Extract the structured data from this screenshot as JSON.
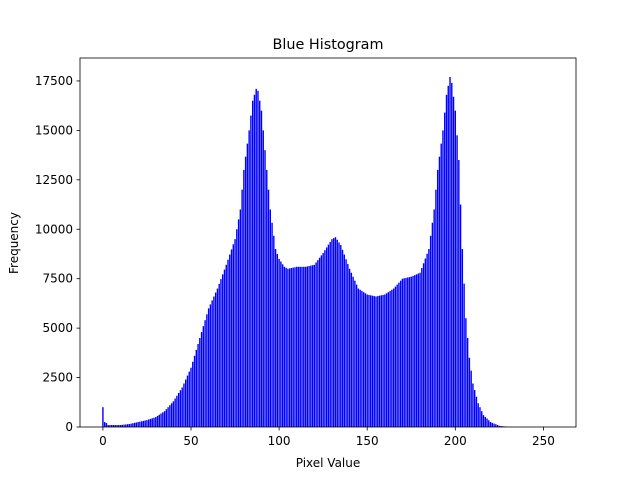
{
  "chart_data": {
    "type": "bar",
    "title": "Blue Histogram",
    "xlabel": "Pixel Value",
    "ylabel": "Frequency",
    "color": "#0000ff",
    "x": [
      0,
      1,
      2,
      3,
      4,
      5,
      6,
      7,
      8,
      9,
      10,
      11,
      12,
      13,
      14,
      15,
      16,
      17,
      18,
      19,
      20,
      21,
      22,
      23,
      24,
      25,
      26,
      27,
      28,
      29,
      30,
      31,
      32,
      33,
      34,
      35,
      36,
      37,
      38,
      39,
      40,
      41,
      42,
      43,
      44,
      45,
      46,
      47,
      48,
      49,
      50,
      51,
      52,
      53,
      54,
      55,
      56,
      57,
      58,
      59,
      60,
      61,
      62,
      63,
      64,
      65,
      66,
      67,
      68,
      69,
      70,
      71,
      72,
      73,
      74,
      75,
      76,
      77,
      78,
      79,
      80,
      81,
      82,
      83,
      84,
      85,
      86,
      87,
      88,
      89,
      90,
      91,
      92,
      93,
      94,
      95,
      96,
      97,
      98,
      99,
      100,
      101,
      102,
      103,
      104,
      105,
      106,
      107,
      108,
      109,
      110,
      111,
      112,
      113,
      114,
      115,
      116,
      117,
      118,
      119,
      120,
      121,
      122,
      123,
      124,
      125,
      126,
      127,
      128,
      129,
      130,
      131,
      132,
      133,
      134,
      135,
      136,
      137,
      138,
      139,
      140,
      141,
      142,
      143,
      144,
      145,
      146,
      147,
      148,
      149,
      150,
      151,
      152,
      153,
      154,
      155,
      156,
      157,
      158,
      159,
      160,
      161,
      162,
      163,
      164,
      165,
      166,
      167,
      168,
      169,
      170,
      171,
      172,
      173,
      174,
      175,
      176,
      177,
      178,
      179,
      180,
      181,
      182,
      183,
      184,
      185,
      186,
      187,
      188,
      189,
      190,
      191,
      192,
      193,
      194,
      195,
      196,
      197,
      198,
      199,
      200,
      201,
      202,
      203,
      204,
      205,
      206,
      207,
      208,
      209,
      210,
      211,
      212,
      213,
      214,
      215,
      216,
      217,
      218,
      219,
      220,
      221,
      222,
      223,
      224,
      225,
      226,
      227,
      228,
      229,
      230,
      231,
      232,
      233,
      234,
      235,
      236,
      237,
      238,
      239,
      240,
      241,
      242,
      243,
      244,
      245,
      246,
      247,
      248,
      249,
      250,
      251,
      252,
      253,
      254,
      255
    ],
    "values": [
      1000,
      250,
      200,
      100,
      100,
      100,
      100,
      100,
      100,
      100,
      100,
      110,
      120,
      130,
      140,
      150,
      170,
      190,
      210,
      230,
      250,
      270,
      290,
      310,
      330,
      350,
      380,
      410,
      440,
      470,
      500,
      560,
      620,
      680,
      740,
      800,
      900,
      1000,
      1100,
      1200,
      1300,
      1440,
      1580,
      1720,
      1860,
      2000,
      2200,
      2400,
      2600,
      2800,
      3000,
      3300,
      3600,
      3900,
      4200,
      4500,
      4800,
      5100,
      5400,
      5700,
      6000,
      6200,
      6400,
      6600,
      6800,
      7000,
      7240,
      7480,
      7720,
      7960,
      8200,
      8460,
      8720,
      8980,
      9240,
      9500,
      10000,
      10500,
      11000,
      12000,
      13000,
      13670,
      14330,
      15000,
      15750,
      16500,
      16800,
      17100,
      17000,
      16500,
      16000,
      15000,
      14000,
      13000,
      12000,
      11000,
      10330,
      9670,
      9000,
      8750,
      8500,
      8370,
      8230,
      8100,
      8050,
      8000,
      8020,
      8040,
      8060,
      8080,
      8100,
      8100,
      8100,
      8100,
      8100,
      8100,
      8120,
      8140,
      8160,
      8180,
      8200,
      8320,
      8440,
      8560,
      8680,
      8800,
      8940,
      9080,
      9220,
      9360,
      9500,
      9550,
      9600,
      9470,
      9330,
      9200,
      8960,
      8720,
      8480,
      8240,
      8000,
      7800,
      7600,
      7400,
      7200,
      7000,
      6940,
      6880,
      6820,
      6760,
      6700,
      6680,
      6660,
      6640,
      6620,
      6600,
      6620,
      6640,
      6660,
      6680,
      6700,
      6760,
      6820,
      6880,
      6940,
      7000,
      7100,
      7200,
      7300,
      7400,
      7500,
      7520,
      7540,
      7560,
      7580,
      7600,
      7640,
      7680,
      7720,
      7760,
      7800,
      8040,
      8280,
      8520,
      8760,
      9000,
      9670,
      10330,
      11000,
      12000,
      13000,
      13670,
      14330,
      15000,
      15900,
      16800,
      17250,
      17700,
      17400,
      16700,
      16000,
      14750,
      13500,
      11250,
      9000,
      7250,
      5500,
      4500,
      3500,
      2850,
      2200,
      1870,
      1530,
      1200,
      1000,
      800,
      600,
      510,
      430,
      340,
      250,
      210,
      170,
      140,
      100,
      60,
      50,
      40,
      30,
      20,
      10,
      8,
      6,
      4,
      2,
      0,
      0,
      0,
      0,
      0,
      0,
      0,
      0,
      0,
      0,
      0,
      0,
      0,
      0,
      0,
      0,
      0,
      0,
      0,
      0,
      0
    ],
    "xlim": [
      -13,
      268.5
    ],
    "ylim": [
      0,
      18660
    ],
    "xticks": [
      0,
      50,
      100,
      150,
      200,
      250
    ],
    "yticks": [
      0,
      2500,
      5000,
      7500,
      10000,
      12500,
      15000,
      17500
    ]
  }
}
